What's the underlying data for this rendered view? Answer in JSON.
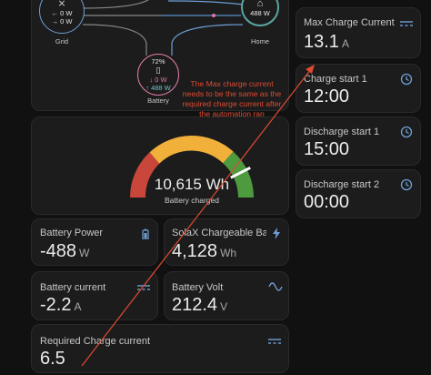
{
  "energy_flow": {
    "grid": {
      "label": "Grid",
      "in": "← 0 W",
      "out": "→ 0 W"
    },
    "home": {
      "label": "Home",
      "value": "488 W"
    },
    "battery": {
      "label": "Battery",
      "percent": "72%",
      "in": "↓ 0 W",
      "out": "↑ 488 W"
    }
  },
  "gauge": {
    "value": "10,615 Wh",
    "label": "Battery charged",
    "level": 0.85
  },
  "tiles": {
    "battery_power": {
      "name": "Battery Power",
      "value": "-488",
      "unit": "W"
    },
    "solax_charge": {
      "name": "SolaX Chargeable Batte...",
      "value": "4,128",
      "unit": "Wh"
    },
    "battery_current": {
      "name": "Battery current",
      "value": "-2.2",
      "unit": "A"
    },
    "battery_volt": {
      "name": "Battery Volt",
      "value": "212.4",
      "unit": "V"
    },
    "required_current": {
      "name": "Required Charge current",
      "value": "6.5"
    },
    "max_charge": {
      "name": "Max Charge Current",
      "value": "13.1",
      "unit": "A"
    },
    "charge_start_1": {
      "name": "Charge start 1",
      "value": "12:00"
    },
    "discharge_start_1": {
      "name": "Discharge start 1",
      "value": "15:00"
    },
    "discharge_start_2": {
      "name": "Discharge start 2",
      "value": "00:00"
    }
  },
  "annotation": {
    "text": "The Max charge current needs to be the same as the required charge current after the automation ran"
  },
  "colors": {
    "accent": "#6f9fd6",
    "annotation": "#e04a32",
    "gauge_red": "#c9463b",
    "gauge_yellow": "#f0b03a",
    "gauge_green": "#4e9a3e"
  }
}
